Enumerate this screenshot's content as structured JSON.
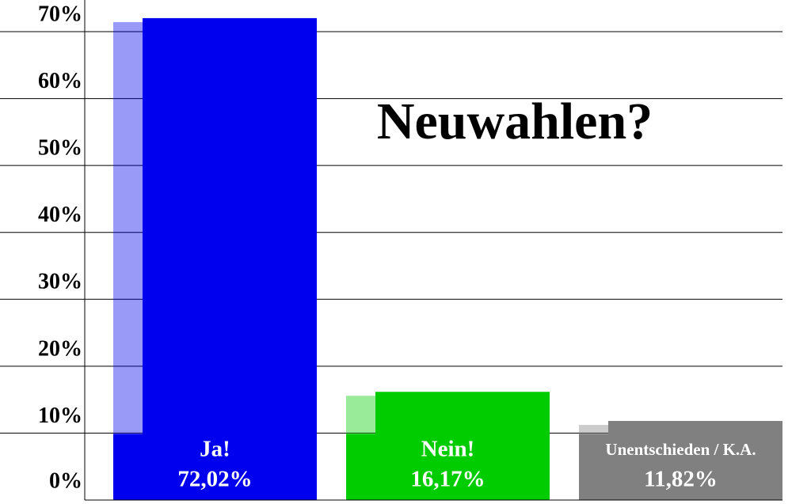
{
  "chart_data": {
    "type": "bar",
    "title": "Neuwahlen?",
    "categories": [
      "Ja!",
      "Nein!",
      "Unentschieden / K.A."
    ],
    "values": [
      72.02,
      16.17,
      11.82
    ],
    "value_labels": [
      "72,02%",
      "16,17%",
      "11,82%"
    ],
    "colors": [
      "#0000ee",
      "#00cc00",
      "#808080"
    ],
    "ylim": [
      0,
      70
    ],
    "yticks": [
      {
        "value": 0,
        "label": "0%"
      },
      {
        "value": 10,
        "label": "10%"
      },
      {
        "value": 20,
        "label": "20%"
      },
      {
        "value": 30,
        "label": "30%"
      },
      {
        "value": 40,
        "label": "40%"
      },
      {
        "value": 50,
        "label": "50%"
      },
      {
        "value": 60,
        "label": "60%"
      },
      {
        "value": 70,
        "label": "70%"
      }
    ],
    "grid": true
  }
}
